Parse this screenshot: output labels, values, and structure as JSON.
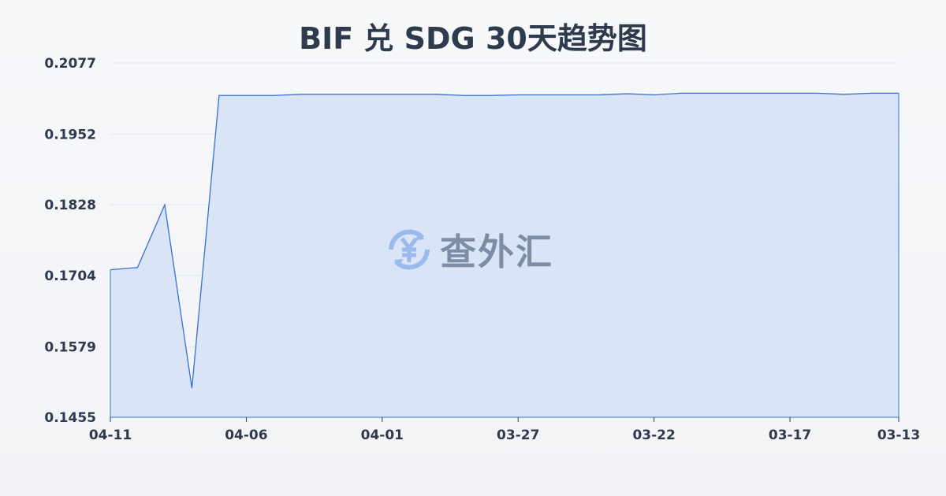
{
  "chart_data": {
    "type": "area",
    "title": "BIF 兑 SDG 30天趋势图",
    "xlabel": "",
    "ylabel": "",
    "ylim": [
      0.1455,
      0.2077
    ],
    "y_ticks": [
      "0.2077",
      "0.1952",
      "0.1828",
      "0.1704",
      "0.1579",
      "0.1455"
    ],
    "x_ticks": [
      "04-11",
      "04-06",
      "04-01",
      "03-27",
      "03-22",
      "03-17",
      "03-13"
    ],
    "grid": true,
    "x": [
      "04-11",
      "04-10",
      "04-09",
      "04-08",
      "04-07",
      "04-06",
      "04-05",
      "04-04",
      "04-03",
      "04-02",
      "04-01",
      "03-31",
      "03-30",
      "03-29",
      "03-28",
      "03-27",
      "03-26",
      "03-25",
      "03-24",
      "03-23",
      "03-22",
      "03-21",
      "03-20",
      "03-19",
      "03-18",
      "03-17",
      "03-16",
      "03-15",
      "03-14",
      "03-13"
    ],
    "values": [
      0.1714,
      0.1718,
      0.1828,
      0.1506,
      0.202,
      0.202,
      0.202,
      0.2022,
      0.2022,
      0.2022,
      0.2022,
      0.2022,
      0.2022,
      0.202,
      0.202,
      0.2021,
      0.2021,
      0.2021,
      0.2021,
      0.2023,
      0.2021,
      0.2024,
      0.2024,
      0.2024,
      0.2024,
      0.2024,
      0.2024,
      0.2022,
      0.2024,
      0.2024
    ],
    "colors": {
      "line": "#3a6fd0",
      "fill": "#d6e2f6"
    }
  },
  "watermark": {
    "text": "查外汇",
    "icon": "yen-exchange-icon"
  }
}
